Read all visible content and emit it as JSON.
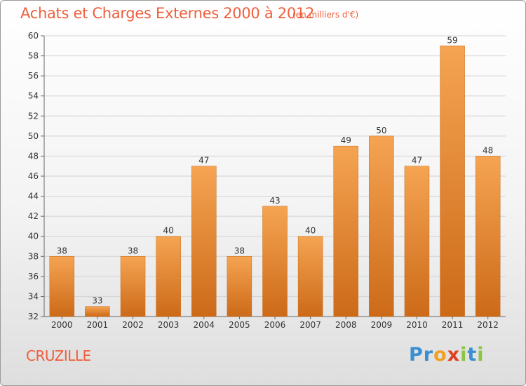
{
  "title": "Achats et Charges Externes 2000 à 2012",
  "unit": "(en milliers d'€)",
  "commune": "CRUZILLE",
  "logo": {
    "text": "Proxiti",
    "letters": [
      "P",
      "r",
      "o",
      "x",
      "i",
      "t",
      "i"
    ],
    "colors": [
      "#3a8fd0",
      "#3a8fd0",
      "#f0a020",
      "#e04020",
      "#8cc540",
      "#3a8fd0",
      "#8cc540"
    ]
  },
  "colors": {
    "title": "#ee5f3d",
    "bar_light": "#f5a452",
    "bar_dark": "#d06e1c",
    "grid": "#d0d0d0"
  },
  "chart_data": {
    "type": "bar",
    "title": "Achats et Charges Externes 2000 à 2012",
    "subtitle": "(en milliers d'€)",
    "categories": [
      "2000",
      "2001",
      "2002",
      "2003",
      "2004",
      "2005",
      "2006",
      "2007",
      "2008",
      "2009",
      "2010",
      "2011",
      "2012"
    ],
    "values": [
      38,
      33,
      38,
      40,
      47,
      38,
      43,
      40,
      49,
      50,
      47,
      59,
      48
    ],
    "ylim": [
      32,
      60
    ],
    "yticks": [
      32,
      34,
      36,
      38,
      40,
      42,
      44,
      46,
      48,
      50,
      52,
      54,
      56,
      58,
      60
    ],
    "grid": true,
    "xlabel": "",
    "ylabel": ""
  }
}
